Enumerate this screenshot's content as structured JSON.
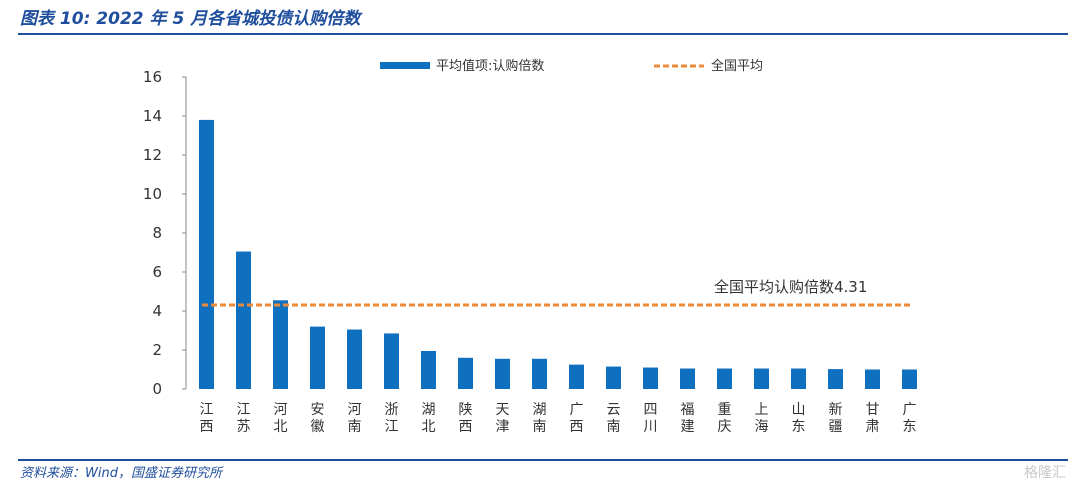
{
  "header": {
    "title": "图表 10:  2022 年 5 月各省城投债认购倍数"
  },
  "footer": {
    "source": "资料来源：Wind，国盛证券研究所",
    "watermark": "格隆汇"
  },
  "colors": {
    "bar": "#1070c0",
    "average_line": "#ed8a3a",
    "rule": "#1f4e9c"
  },
  "chart_data": {
    "type": "bar",
    "categories": [
      "江西",
      "江苏",
      "河北",
      "安徽",
      "河南",
      "浙江",
      "湖北",
      "陕西",
      "天津",
      "湖南",
      "广西",
      "云南",
      "四川",
      "福建",
      "重庆",
      "上海",
      "山东",
      "新疆",
      "甘肃",
      "广东"
    ],
    "series": [
      {
        "name": "平均值项:认购倍数",
        "values": [
          13.8,
          7.05,
          4.55,
          3.2,
          3.05,
          2.85,
          1.95,
          1.6,
          1.55,
          1.55,
          1.25,
          1.15,
          1.1,
          1.05,
          1.05,
          1.05,
          1.05,
          1.02,
          1.0,
          1.0
        ]
      }
    ],
    "reference_line": {
      "name": "全国平均",
      "value": 4.31
    },
    "annotation": "全国平均认购倍数4.31",
    "yticks": [
      "0",
      "2",
      "4",
      "6",
      "8",
      "10",
      "12",
      "14",
      "16"
    ],
    "ylim": [
      0,
      16
    ],
    "legend_position": "top",
    "grid": false
  }
}
